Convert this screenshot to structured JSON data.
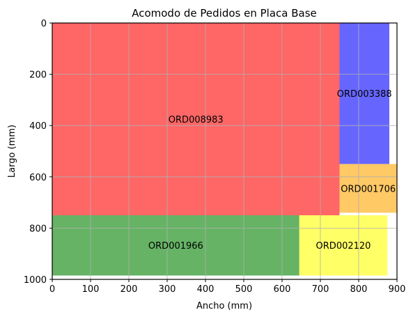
{
  "chart_data": {
    "type": "rectangle_layout",
    "title": "Acomodo de Pedidos en Placa Base",
    "xlabel": "Ancho (mm)",
    "ylabel": "Largo (mm)",
    "xlim": [
      0,
      900
    ],
    "ylim": [
      1000,
      0
    ],
    "y_inverted": true,
    "grid": true,
    "x_ticks": [
      0,
      100,
      200,
      300,
      400,
      500,
      600,
      700,
      800,
      900
    ],
    "y_ticks": [
      0,
      200,
      400,
      600,
      800,
      1000
    ],
    "colors": {
      "ORD008983": "#ff0000",
      "ORD003388": "#0000ff",
      "ORD001706": "#ffa500",
      "ORD001966": "#008000",
      "ORD002120": "#ffff00"
    },
    "rectangles": [
      {
        "label": "ORD008983",
        "x": 0,
        "y": 0,
        "width": 750,
        "height": 750,
        "color": "#ff0000"
      },
      {
        "label": "ORD003388",
        "x": 750,
        "y": 0,
        "width": 130,
        "height": 550,
        "color": "#0000ff"
      },
      {
        "label": "ORD001706",
        "x": 750,
        "y": 550,
        "width": 150,
        "height": 190,
        "color": "#ffa500"
      },
      {
        "label": "ORD001966",
        "x": 0,
        "y": 750,
        "width": 645,
        "height": 235,
        "color": "#008000"
      },
      {
        "label": "ORD002120",
        "x": 645,
        "y": 750,
        "width": 230,
        "height": 235,
        "color": "#ffff00"
      }
    ]
  }
}
